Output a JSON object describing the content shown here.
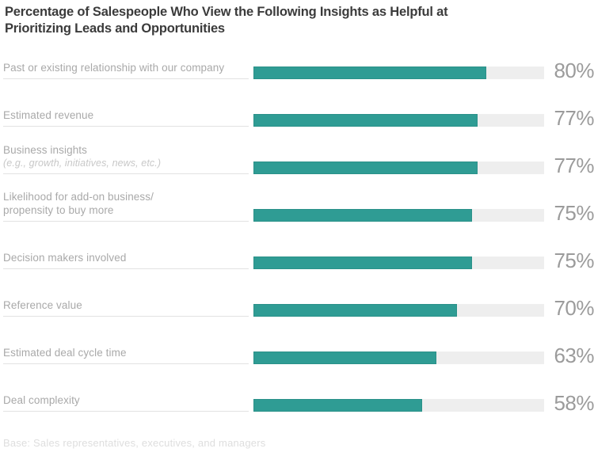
{
  "title": {
    "line1": "Percentage of Salespeople Who View the Following Insights as Helpful at",
    "line2": "Prioritizing Leads and Opportunities"
  },
  "footer": {
    "base_note": "Base: Sales representatives, executives, and managers"
  },
  "colors": {
    "background": "#ffffff",
    "bar": "#2f9c94",
    "track": "#eeeeee",
    "line": "#e2e2e2",
    "label": "#a9a9a9",
    "sublabel": "#c8c8c8",
    "pct": "#9b9b9b",
    "title": "#3b3b3b",
    "footer": "#dedede"
  },
  "rows": [
    {
      "label": "Past or existing relationship with our company",
      "pct": "80%"
    },
    {
      "label": "Estimated revenue",
      "pct": "77%"
    },
    {
      "label": "Business insights",
      "sublabel": "(e.g., growth, initiatives, news, etc.)",
      "pct": "77%"
    },
    {
      "label": "Likelihood for add-on business/",
      "label2": "propensity to buy more",
      "pct": "75%"
    },
    {
      "label": "Decision makers involved",
      "pct": "75%"
    },
    {
      "label": "Reference value",
      "pct": "70%"
    },
    {
      "label": "Estimated deal cycle time",
      "pct": "63%"
    },
    {
      "label": "Deal complexity",
      "pct": "58%"
    }
  ],
  "chart_data": {
    "type": "bar",
    "orientation": "horizontal",
    "title": "Percentage of Salespeople Who View the Following Insights as Helpful at Prioritizing Leads and Opportunities",
    "categories": [
      "Past or existing relationship with our company",
      "Estimated revenue",
      "Business insights (e.g., growth, initiatives, news, etc.)",
      "Likelihood for add-on business/propensity to buy more",
      "Decision makers involved",
      "Reference value",
      "Estimated deal cycle time",
      "Deal complexity"
    ],
    "values": [
      80,
      77,
      77,
      75,
      75,
      70,
      63,
      58
    ],
    "value_labels": [
      "80%",
      "77%",
      "77%",
      "75%",
      "75%",
      "70%",
      "63%",
      "58%"
    ],
    "xlim": [
      0,
      100
    ],
    "unit": "percent",
    "grid": false,
    "legend": false,
    "note": "Base: Sales representatives, executives, and managers"
  }
}
